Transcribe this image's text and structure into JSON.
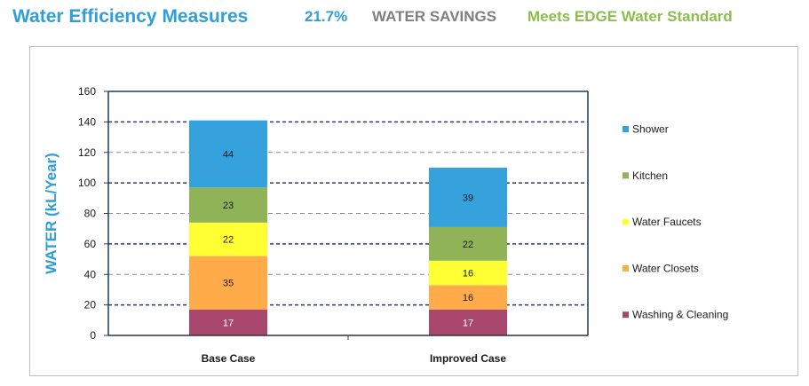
{
  "header": {
    "title": "Water Efficiency Measures",
    "percent": "21.7%",
    "savings_label": "WATER SAVINGS",
    "standard": "Meets EDGE Water Standard",
    "colors": {
      "title": "#2e9fd8",
      "savings": "#7f7f7f",
      "standard": "#8dbd4d"
    }
  },
  "chart_data": {
    "type": "bar",
    "stacked": true,
    "categories": [
      "Base Case",
      "Improved Case"
    ],
    "series": [
      {
        "name": "Washing & Cleaning",
        "values": [
          17,
          17
        ],
        "color": "#a9476e",
        "label_color": "#ffffff"
      },
      {
        "name": "Water Closets",
        "values": [
          35,
          16
        ],
        "color": "#ffab49",
        "label_color": "#1a1a1a"
      },
      {
        "name": "Water Faucets",
        "values": [
          22,
          16
        ],
        "color": "#ffff33",
        "label_color": "#1a1a1a"
      },
      {
        "name": "Kitchen",
        "values": [
          23,
          22
        ],
        "color": "#8fb356",
        "label_color": "#1a1a1a"
      },
      {
        "name": "Shower",
        "values": [
          44,
          39
        ],
        "color": "#36a2dd",
        "label_color": "#1a1a1a"
      }
    ],
    "ylabel": "WATER (kL/Year)",
    "ylim": [
      0,
      160
    ],
    "yticks": [
      0,
      20,
      40,
      60,
      80,
      100,
      120,
      140,
      160
    ],
    "grid": true,
    "legend_position": "right",
    "legend_order": [
      "Shower",
      "Kitchen",
      "Water Faucets",
      "Water Closets",
      "Washing & Cleaning"
    ],
    "ylabel_color": "#2e9fd8",
    "axis_color": "#1f3a6e"
  }
}
